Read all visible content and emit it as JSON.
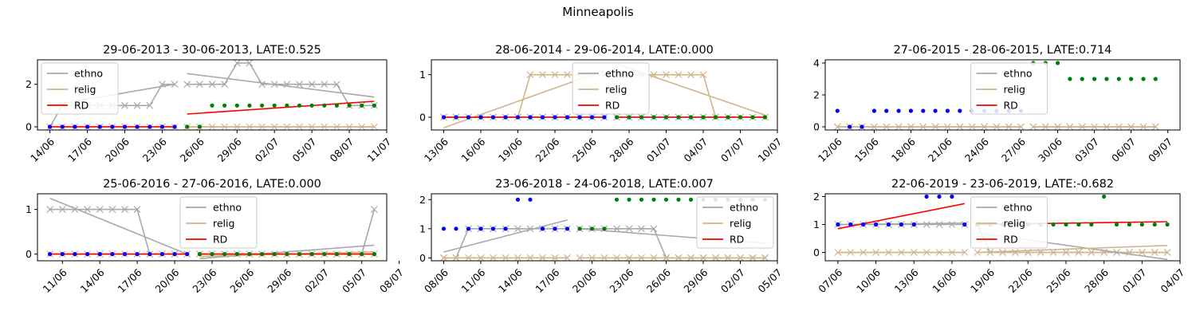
{
  "suptitle": "Minneapolis",
  "legend_labels": [
    "ethno",
    "relig",
    "RD"
  ],
  "colors": {
    "ethno": "#a9a9a9",
    "relig": "#d2b48c",
    "rd": "#ff0000",
    "dot_blue": "#0000ff",
    "dot_green": "#008000"
  },
  "chart_data": [
    {
      "type": "line",
      "title": "29-06-2013 - 30-06-2013, LATE:0.525",
      "xlim": [
        -1,
        27
      ],
      "ylim": [
        -0.15,
        3.15
      ],
      "xticks": [
        {
          "x": 0,
          "label": "14/06"
        },
        {
          "x": 3,
          "label": "17/06"
        },
        {
          "x": 6,
          "label": "20/06"
        },
        {
          "x": 9,
          "label": "23/06"
        },
        {
          "x": 12,
          "label": "26/06"
        },
        {
          "x": 15,
          "label": "29/06"
        },
        {
          "x": 18,
          "label": "02/07"
        },
        {
          "x": 21,
          "label": "05/07"
        },
        {
          "x": 24,
          "label": "08/07"
        },
        {
          "x": 27,
          "label": "11/07"
        }
      ],
      "yticks": [
        0,
        2
      ],
      "cutoff": 10.5,
      "ethno": [
        0,
        1,
        1,
        1,
        1,
        1,
        1,
        1,
        1,
        2,
        2,
        2,
        2,
        2,
        2,
        3,
        3,
        2,
        2,
        2,
        2,
        2,
        2,
        2,
        1,
        1,
        1
      ],
      "relig": [
        0,
        0,
        0,
        0,
        0,
        0,
        0,
        0,
        0,
        0,
        0,
        0,
        0,
        0,
        0,
        0,
        0,
        0,
        0,
        0,
        0,
        0,
        0,
        0,
        0,
        0,
        0
      ],
      "dots": [
        0,
        0,
        0,
        0,
        0,
        0,
        0,
        0,
        0,
        0,
        0,
        0,
        0,
        1,
        1,
        1,
        1,
        1,
        1,
        1,
        1,
        1,
        1,
        1,
        1,
        1,
        1
      ],
      "fit_ethno": [
        [
          0,
          1.0
        ],
        [
          10,
          2.0
        ],
        [
          11,
          2.5
        ],
        [
          26,
          1.4
        ]
      ],
      "fit_relig": [
        [
          0,
          0.0
        ],
        [
          10,
          0.0
        ],
        [
          11,
          0.0
        ],
        [
          26,
          0.0
        ]
      ],
      "fit_rd": [
        [
          0,
          0.0
        ],
        [
          10,
          0.0
        ],
        [
          11,
          0.6
        ],
        [
          26,
          1.2
        ]
      ],
      "legend_loc": "upper left"
    },
    {
      "type": "line",
      "title": "28-06-2014 - 29-06-2014, LATE:0.000",
      "xlim": [
        -1,
        27
      ],
      "ylim": [
        -0.3,
        1.35
      ],
      "xticks": [
        {
          "x": 0,
          "label": "13/06"
        },
        {
          "x": 3,
          "label": "16/06"
        },
        {
          "x": 6,
          "label": "19/06"
        },
        {
          "x": 9,
          "label": "22/06"
        },
        {
          "x": 12,
          "label": "25/06"
        },
        {
          "x": 15,
          "label": "28/06"
        },
        {
          "x": 18,
          "label": "01/07"
        },
        {
          "x": 21,
          "label": "04/07"
        },
        {
          "x": 24,
          "label": "07/07"
        },
        {
          "x": 27,
          "label": "10/07"
        }
      ],
      "yticks": [
        0,
        1
      ],
      "cutoff": 13.5,
      "ethno": [
        0,
        0,
        0,
        0,
        0,
        0,
        0,
        0,
        0,
        0,
        0,
        0,
        0,
        0,
        0,
        0,
        0,
        0,
        0,
        0,
        0,
        0,
        0,
        0,
        0,
        0,
        0
      ],
      "relig": [
        0,
        0,
        0,
        0,
        0,
        0,
        0,
        1,
        1,
        1,
        1,
        1,
        1,
        1,
        1,
        1,
        1,
        1,
        1,
        1,
        1,
        1,
        0,
        0,
        0,
        0,
        0
      ],
      "dots": [
        0,
        0,
        0,
        0,
        0,
        0,
        0,
        0,
        0,
        0,
        0,
        0,
        0,
        0,
        0,
        0,
        0,
        0,
        0,
        0,
        0,
        0,
        0,
        0,
        0,
        0,
        0
      ],
      "fit_ethno": [
        [
          0,
          0.0
        ],
        [
          13,
          0.0
        ],
        [
          14,
          0.0
        ],
        [
          26,
          0.0
        ]
      ],
      "fit_relig": [
        [
          0,
          -0.25
        ],
        [
          13,
          1.1
        ],
        [
          14,
          1.25
        ],
        [
          26,
          0.05
        ]
      ],
      "fit_rd": [
        [
          0,
          0.0
        ],
        [
          13,
          0.0
        ],
        [
          14,
          0.0
        ],
        [
          26,
          0.0
        ]
      ],
      "legend_loc": "upper center"
    },
    {
      "type": "line",
      "title": "27-06-2015 - 28-06-2015, LATE:0.714",
      "xlim": [
        -1,
        28
      ],
      "ylim": [
        -0.2,
        4.2
      ],
      "xticks": [
        {
          "x": 0,
          "label": "12/06"
        },
        {
          "x": 3,
          "label": "15/06"
        },
        {
          "x": 6,
          "label": "18/06"
        },
        {
          "x": 9,
          "label": "21/06"
        },
        {
          "x": 12,
          "label": "24/06"
        },
        {
          "x": 15,
          "label": "27/06"
        },
        {
          "x": 18,
          "label": "30/06"
        },
        {
          "x": 21,
          "label": "03/07"
        },
        {
          "x": 24,
          "label": "06/07"
        },
        {
          "x": 27,
          "label": "09/07"
        }
      ],
      "yticks": [
        0,
        2,
        4
      ],
      "cutoff": 15.5,
      "ethno": [
        0,
        0,
        0,
        0,
        0,
        0,
        0,
        0,
        0,
        0,
        0,
        0,
        0,
        0,
        0,
        0,
        0,
        0,
        0,
        0,
        0,
        0,
        0,
        0,
        0,
        0,
        0
      ],
      "relig": [
        0,
        0,
        0,
        0,
        0,
        0,
        0,
        0,
        0,
        0,
        0,
        0,
        0,
        0,
        0,
        0,
        0,
        0,
        0,
        0,
        0,
        0,
        0,
        0,
        0,
        0,
        0
      ],
      "dots": [
        1,
        0,
        0,
        1,
        1,
        1,
        1,
        1,
        1,
        1,
        1,
        1,
        1,
        1,
        1,
        1,
        4,
        4,
        4,
        3,
        3,
        3,
        3,
        3,
        3,
        3,
        3
      ],
      "fit_ethno": [
        [
          0,
          0.0
        ],
        [
          26,
          0.0
        ]
      ],
      "fit_relig": [
        [
          0,
          0.0
        ],
        [
          26,
          0.0
        ]
      ],
      "fit_rd": [
        [
          0,
          0.5
        ],
        [
          26,
          3.5
        ]
      ],
      "legend_loc": "upper center"
    },
    {
      "type": "line",
      "title": "25-06-2016 - 27-06-2016, LATE:0.000",
      "xlim": [
        -1,
        27
      ],
      "ylim": [
        -0.15,
        1.35
      ],
      "xticks": [
        {
          "x": 1,
          "label": "11/06"
        },
        {
          "x": 4,
          "label": "14/06"
        },
        {
          "x": 7,
          "label": "17/06"
        },
        {
          "x": 10,
          "label": "20/06"
        },
        {
          "x": 13,
          "label": "23/06"
        },
        {
          "x": 16,
          "label": "26/06"
        },
        {
          "x": 19,
          "label": "29/06"
        },
        {
          "x": 22,
          "label": "02/07"
        },
        {
          "x": 25,
          "label": "05/07"
        },
        {
          "x": 28,
          "label": "08/07"
        }
      ],
      "yticks": [
        0,
        1
      ],
      "cutoff": 11.5,
      "ethno": [
        1,
        1,
        1,
        1,
        1,
        1,
        1,
        1,
        0,
        0,
        0,
        0,
        0,
        0,
        0,
        0,
        0,
        0,
        0,
        0,
        0,
        0,
        0,
        0,
        0,
        0,
        1
      ],
      "relig": [
        0,
        0,
        0,
        0,
        0,
        0,
        0,
        0,
        0,
        0,
        0,
        0,
        0,
        0,
        0,
        0,
        0,
        0,
        0,
        0,
        0,
        0,
        0,
        0,
        0,
        0,
        0
      ],
      "dots": [
        0,
        0,
        0,
        0,
        0,
        0,
        0,
        0,
        0,
        0,
        0,
        0,
        0,
        0,
        0,
        0,
        0,
        0,
        0,
        0,
        0,
        0,
        0,
        0,
        0,
        0,
        0
      ],
      "fit_ethno": [
        [
          0,
          1.25
        ],
        [
          11,
          0.0
        ],
        [
          12,
          -0.1
        ],
        [
          26,
          0.2
        ]
      ],
      "fit_relig": [
        [
          0,
          0.0
        ],
        [
          11,
          0.0
        ],
        [
          12,
          -0.05
        ],
        [
          26,
          0.05
        ]
      ],
      "fit_rd": [
        [
          0,
          0.0
        ],
        [
          11,
          0.0
        ],
        [
          12,
          0.0
        ],
        [
          26,
          0.0
        ]
      ],
      "legend_loc": "upper center"
    },
    {
      "type": "line",
      "title": "23-06-2018 - 24-06-2018, LATE:0.007",
      "xlim": [
        -1,
        27
      ],
      "ylim": [
        -0.1,
        2.2
      ],
      "xticks": [
        {
          "x": 0,
          "label": "08/06"
        },
        {
          "x": 3,
          "label": "11/06"
        },
        {
          "x": 6,
          "label": "14/06"
        },
        {
          "x": 9,
          "label": "17/06"
        },
        {
          "x": 12,
          "label": "20/06"
        },
        {
          "x": 15,
          "label": "23/06"
        },
        {
          "x": 18,
          "label": "26/06"
        },
        {
          "x": 21,
          "label": "29/06"
        },
        {
          "x": 24,
          "label": "02/07"
        },
        {
          "x": 27,
          "label": "05/07"
        }
      ],
      "yticks": [
        0,
        1,
        2
      ],
      "cutoff": 10.5,
      "ethno": [
        0,
        0,
        1,
        1,
        1,
        1,
        1,
        1,
        1,
        1,
        1,
        1,
        1,
        1,
        1,
        1,
        1,
        1,
        0,
        0,
        0,
        0,
        0,
        0,
        0,
        0,
        0
      ],
      "relig": [
        0,
        0,
        0,
        0,
        0,
        0,
        0,
        0,
        0,
        0,
        0,
        0,
        0,
        0,
        0,
        0,
        0,
        0,
        0,
        0,
        0,
        0,
        0,
        0,
        0,
        0,
        0
      ],
      "dots": [
        1,
        1,
        1,
        1,
        1,
        1,
        2,
        2,
        1,
        1,
        1,
        1,
        1,
        1,
        2,
        2,
        2,
        2,
        2,
        2,
        2,
        2,
        2,
        2,
        2,
        2,
        2
      ],
      "fit_ethno": [
        [
          0,
          0.2
        ],
        [
          10,
          1.3
        ],
        [
          11,
          1.0
        ],
        [
          26,
          0.5
        ]
      ],
      "fit_relig": [
        [
          0,
          0.0
        ],
        [
          10,
          0.0
        ],
        [
          11,
          0.0
        ],
        [
          26,
          0.0
        ]
      ],
      "fit_rd": [
        [
          0,
          1.05
        ],
        [
          26,
          2.25
        ]
      ],
      "legend_loc": "upper right"
    },
    {
      "type": "line",
      "title": "22-06-2019 - 23-06-2019, LATE:-0.682",
      "xlim": [
        -1,
        27
      ],
      "ylim": [
        -0.3,
        2.1
      ],
      "xticks": [
        {
          "x": 0,
          "label": "07/06"
        },
        {
          "x": 3,
          "label": "10/06"
        },
        {
          "x": 6,
          "label": "13/06"
        },
        {
          "x": 9,
          "label": "16/06"
        },
        {
          "x": 12,
          "label": "19/06"
        },
        {
          "x": 15,
          "label": "22/06"
        },
        {
          "x": 18,
          "label": "25/06"
        },
        {
          "x": 21,
          "label": "28/06"
        },
        {
          "x": 24,
          "label": "01/07"
        },
        {
          "x": 27,
          "label": "04/07"
        }
      ],
      "yticks": [
        0,
        1,
        2
      ],
      "cutoff": 10.5,
      "ethno": [
        1,
        1,
        1,
        1,
        1,
        1,
        1,
        1,
        1,
        1,
        1,
        1,
        0,
        0,
        0,
        0,
        0,
        0,
        0,
        0,
        0,
        0,
        0,
        0,
        0,
        0,
        0
      ],
      "relig": [
        0,
        0,
        0,
        0,
        0,
        0,
        0,
        0,
        0,
        0,
        0,
        0,
        0,
        0,
        0,
        0,
        0,
        0,
        0,
        0,
        0,
        0,
        0,
        0,
        0,
        0,
        0
      ],
      "dots": [
        1,
        1,
        1,
        1,
        1,
        1,
        1,
        2,
        2,
        2,
        1,
        1,
        1,
        1,
        1,
        1,
        1,
        1,
        1,
        1,
        1,
        2,
        1,
        1,
        1,
        1,
        1
      ],
      "fit_ethno": [
        [
          0,
          1.0
        ],
        [
          10,
          1.05
        ],
        [
          11,
          0.7
        ],
        [
          26,
          -0.25
        ]
      ],
      "fit_relig": [
        [
          0,
          0.0
        ],
        [
          10,
          0.0
        ],
        [
          11,
          0.0
        ],
        [
          26,
          0.25
        ]
      ],
      "fit_rd": [
        [
          0,
          0.85
        ],
        [
          10,
          1.75
        ],
        [
          11,
          1.0
        ],
        [
          26,
          1.1
        ]
      ],
      "legend_loc": "upper center"
    }
  ]
}
